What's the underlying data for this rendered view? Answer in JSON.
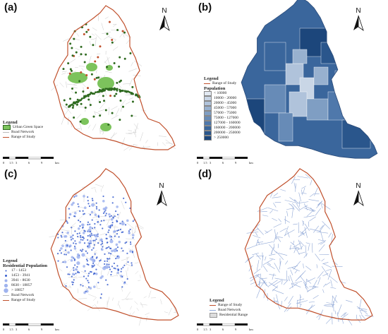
{
  "panels": [
    {
      "label": "(a)",
      "north": "N",
      "legend": {
        "title": "Legend",
        "items": [
          "Urban Green Space",
          "Road Network",
          "Range of Study"
        ]
      },
      "scale": [
        "0",
        "1.5",
        "3",
        "6",
        "9",
        "km"
      ]
    },
    {
      "label": "(b)",
      "north": "N",
      "legend": {
        "title": "Legend",
        "range": "Range of Study",
        "subtitle": "Population",
        "classes": [
          "< 10000",
          "10000 - 20000",
          "20000 - 45000",
          "45000 - 57000",
          "57000 - 75000",
          "75000 - 127000",
          "127000 - 160000",
          "160000 - 200000",
          "200000 - 250000",
          "> 250000"
        ]
      },
      "scale": [
        "0",
        "1.5",
        "3",
        "6",
        "9",
        "km"
      ],
      "colors": [
        "#e2e9f2",
        "#c9d6e6",
        "#b0c3db",
        "#98b1cf",
        "#7f9ec3",
        "#678bb7",
        "#4f78ab",
        "#3a669c",
        "#2a568c",
        "#1c467b"
      ]
    },
    {
      "label": "(c)",
      "north": "N",
      "legend": {
        "title": "Legend",
        "subtitle": "Residential Population",
        "classes": [
          "17 - 1453",
          "1453 - 3941",
          "3941 - 8630",
          "8630 - 18857",
          "> 18857"
        ],
        "extra": [
          "Road Network",
          "Range of Study"
        ]
      },
      "scale": [
        "0",
        "1.5",
        "3",
        "6",
        "9",
        "km"
      ]
    },
    {
      "label": "(d)",
      "north": "N",
      "legend": {
        "title": "Legend",
        "items": [
          "Range of Study",
          "Road Network",
          "Residential Range"
        ]
      },
      "scale": [
        "0",
        "1.5",
        "3",
        "6",
        "9",
        "km"
      ]
    }
  ],
  "colors": {
    "boundary": "#c0502c",
    "green": "#7cc35c",
    "road_grey": "#c8c8c8",
    "road_blue": "#8fa7d6",
    "dot_blue": "#4a6fd6"
  }
}
